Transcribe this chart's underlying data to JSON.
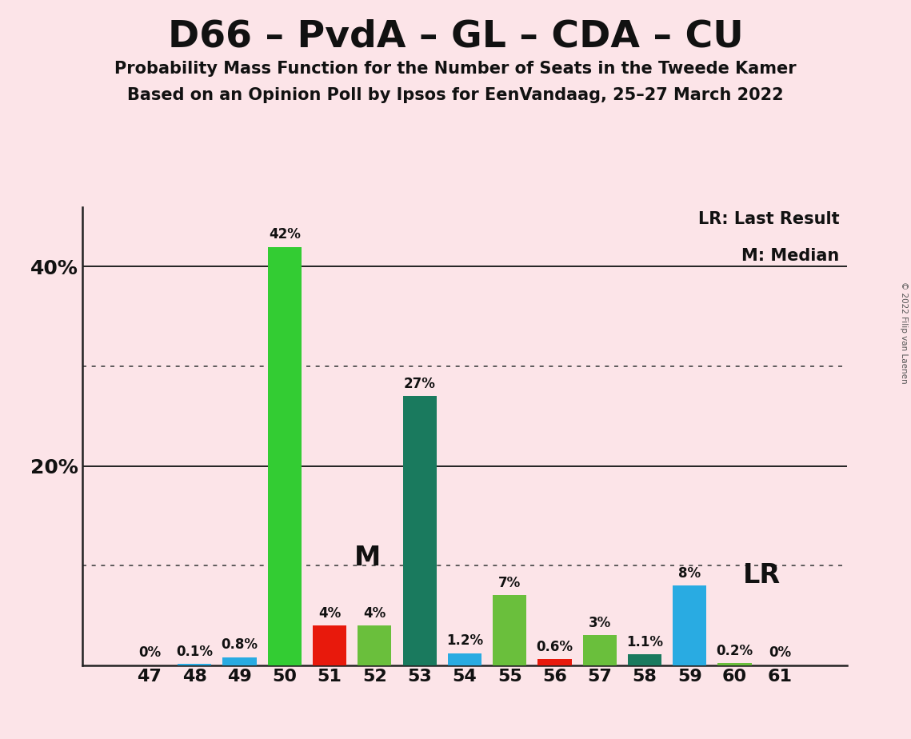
{
  "title": "D66 – PvdA – GL – CDA – CU",
  "subtitle1": "Probability Mass Function for the Number of Seats in the Tweede Kamer",
  "subtitle2": "Based on an Opinion Poll by Ipsos for EenVandaag, 25–27 March 2022",
  "copyright": "© 2022 Filip van Laenen",
  "seats": [
    47,
    48,
    49,
    50,
    51,
    52,
    53,
    54,
    55,
    56,
    57,
    58,
    59,
    60,
    61
  ],
  "values": [
    0.0,
    0.1,
    0.8,
    42.0,
    4.0,
    4.0,
    27.0,
    1.2,
    7.0,
    0.6,
    3.0,
    1.1,
    8.0,
    0.2,
    0.0
  ],
  "labels": [
    "0%",
    "0.1%",
    "0.8%",
    "42%",
    "4%",
    "4%",
    "27%",
    "1.2%",
    "7%",
    "0.6%",
    "3%",
    "1.1%",
    "8%",
    "0.2%",
    "0%"
  ],
  "colors": [
    "#fce4e8",
    "#29abe2",
    "#29abe2",
    "#33cc33",
    "#e8190c",
    "#6abf3c",
    "#1a7a5e",
    "#29abe2",
    "#6abf3c",
    "#e8190c",
    "#6abf3c",
    "#1a7a5e",
    "#29abe2",
    "#6abf3c",
    "#6abf3c"
  ],
  "background_color": "#fce4e8",
  "ylim": [
    0,
    46
  ],
  "ytick_vals": [
    20,
    40
  ],
  "ytick_labels": [
    "20%",
    "40%"
  ],
  "dotted_lines": [
    10,
    30
  ],
  "solid_lines": [
    20,
    40
  ],
  "median_seat": 52,
  "lr_seat": 59,
  "legend_lr": "LR: Last Result",
  "legend_m": "M: Median",
  "bar_width": 0.75
}
